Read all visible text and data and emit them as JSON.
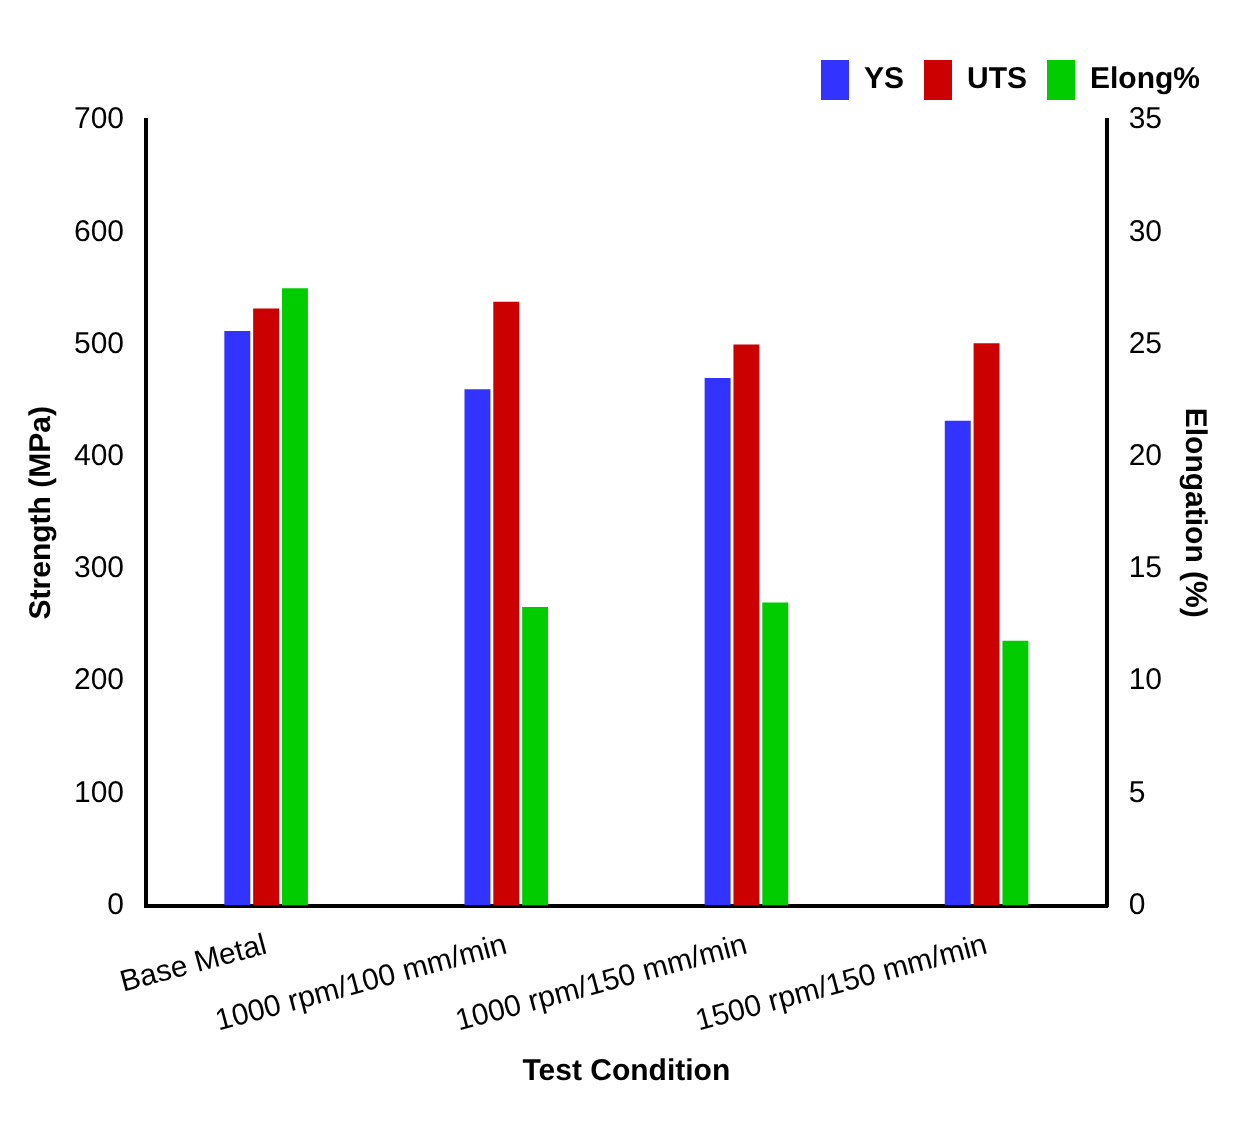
{
  "chart_data": {
    "type": "bar",
    "xlabel": "Test Condition",
    "ylabel": "Strength (MPa)",
    "y2label": "Elongation (%)",
    "categories": [
      "Base Metal",
      "1000 rpm/100 mm/min",
      "1000 rpm/150 mm/min",
      "1500 rpm/150 mm/min"
    ],
    "series": [
      {
        "name": "YS",
        "color": "#3333ff",
        "values": [
          512,
          460,
          470,
          432
        ]
      },
      {
        "name": "UTS",
        "color": "#cc0000",
        "values": [
          532,
          538,
          500,
          501
        ]
      },
      {
        "name": "Elong%",
        "color": "#00cc00",
        "values": [
          27.5,
          13.3,
          13.5,
          11.8
        ],
        "axis": "y2"
      }
    ],
    "ylim": [
      0,
      700
    ],
    "yticks": [
      0,
      100,
      200,
      300,
      400,
      500,
      600,
      700
    ],
    "y2lim": [
      0,
      35
    ],
    "y2ticks": [
      0,
      5,
      10,
      15,
      20,
      25,
      30,
      35
    ],
    "grid": false,
    "legend": "top right"
  }
}
